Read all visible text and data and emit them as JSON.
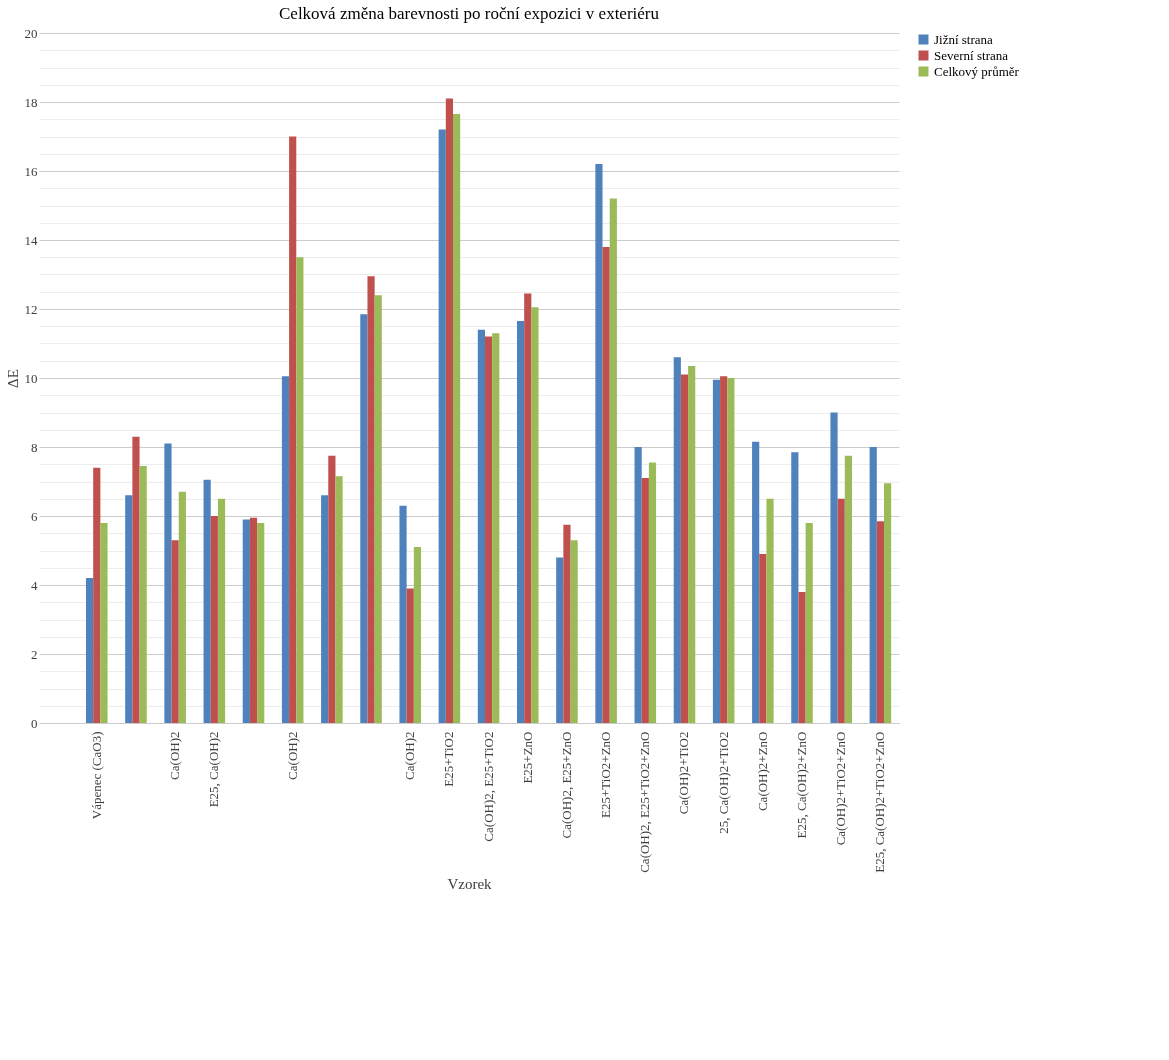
{
  "chart_data": {
    "type": "bar",
    "title": "Celková změna barevnosti po roční expozici  v exteriéru",
    "xlabel": "Vzorek",
    "ylabel": "ΔE",
    "categories": [
      null,
      "Vápenec (CaO3)",
      null,
      "Ca(OH)2",
      "E25, Ca(OH)2",
      null,
      "Ca(OH)2",
      null,
      null,
      "Ca(OH)2",
      "E25+TiO2",
      "Ca(OH)2, E25+TiO2",
      "E25+ZnO",
      "Ca(OH)2, E25+ZnO",
      "E25+TiO2+ZnO",
      "Ca(OH)2, E25+TiO2+ZnO",
      "Ca(OH)2+TiO2",
      "25, Ca(OH)2+TiO2",
      "Ca(OH)2+ZnO",
      "E25, Ca(OH)2+ZnO",
      "Ca(OH)2+TiO2+ZnO",
      "E25, Ca(OH)2+TiO2+ZnO"
    ],
    "series": [
      {
        "name": "Jižní strana",
        "color": "#4f81bd",
        "values": [
          null,
          4.2,
          6.6,
          8.1,
          7.05,
          5.9,
          10.05,
          6.6,
          11.85,
          6.3,
          17.2,
          11.4,
          11.65,
          4.8,
          16.2,
          8.0,
          10.6,
          9.95,
          8.15,
          7.85,
          9.0,
          8.0
        ]
      },
      {
        "name": "Severní strana",
        "color": "#c0504d",
        "values": [
          null,
          7.4,
          8.3,
          5.3,
          6.0,
          5.95,
          17.0,
          7.75,
          12.95,
          3.9,
          18.1,
          11.2,
          12.45,
          5.75,
          13.8,
          7.1,
          10.1,
          10.05,
          4.9,
          3.8,
          6.5,
          5.85
        ]
      },
      {
        "name": "Celkový průměr",
        "color": "#9bbb59",
        "values": [
          null,
          5.8,
          7.45,
          6.7,
          6.5,
          5.8,
          13.5,
          7.15,
          12.4,
          5.1,
          17.65,
          11.3,
          12.05,
          5.3,
          15.2,
          7.55,
          10.35,
          10.0,
          6.5,
          5.8,
          7.75,
          6.95
        ]
      }
    ],
    "ylim": [
      0,
      20
    ],
    "yticks": [
      0,
      {
        "value": 0.5,
        "label": null
      },
      {
        "value": 1,
        "label": null
      },
      {
        "value": 1.5,
        "label": null
      },
      2,
      {
        "value": 2.5,
        "label": null
      },
      {
        "value": 3,
        "label": null
      },
      {
        "value": 3.5,
        "label": null
      },
      4,
      {
        "value": 4.5,
        "label": null
      },
      {
        "value": 5,
        "label": null
      },
      {
        "value": 5.5,
        "label": null
      },
      6,
      {
        "value": 6.5,
        "label": null
      },
      {
        "value": 7,
        "label": null
      },
      {
        "value": 7.5,
        "label": null
      },
      8,
      {
        "value": 8.5,
        "label": null
      },
      {
        "value": 9,
        "label": null
      },
      {
        "value": 9.5,
        "label": null
      },
      10,
      {
        "value": 10.5,
        "label": null
      },
      {
        "value": 11,
        "label": null
      },
      {
        "value": 11.5,
        "label": null
      },
      12,
      {
        "value": 12.5,
        "label": null
      },
      {
        "value": 13,
        "label": null
      },
      {
        "value": 13.5,
        "label": null
      },
      14,
      {
        "value": 14.5,
        "label": null
      },
      {
        "value": 15,
        "label": null
      },
      {
        "value": 15.5,
        "label": null
      },
      16,
      {
        "value": 16.5,
        "label": null
      },
      {
        "value": 17,
        "label": null
      },
      {
        "value": 17.5,
        "label": null
      },
      18,
      {
        "value": 18.5,
        "label": null
      },
      {
        "value": 19,
        "label": null
      },
      {
        "value": 19.5,
        "label": null
      },
      20
    ],
    "grid": "y",
    "legend": "right"
  }
}
